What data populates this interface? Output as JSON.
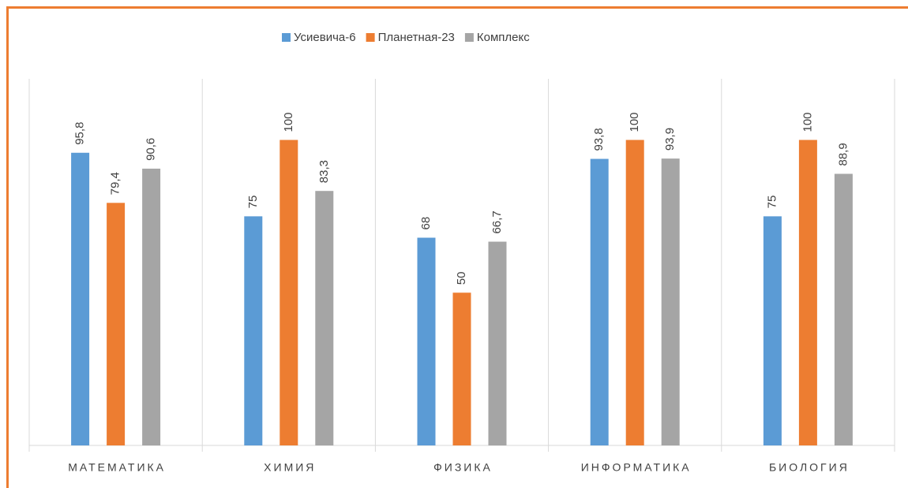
{
  "chart_data": {
    "type": "bar",
    "categories": [
      "МАТЕМАТИКА",
      "ХИМИЯ",
      "ФИЗИКА",
      "ИНФОРМАТИКА",
      "БИОЛОГИЯ"
    ],
    "series": [
      {
        "name": "Усиевича-6",
        "color": "#5b9bd5",
        "values": [
          95.8,
          75,
          68,
          93.8,
          75
        ],
        "value_labels": [
          "95,8",
          "75",
          "68",
          "93,8",
          "75"
        ]
      },
      {
        "name": "Планетная-23",
        "color": "#ed7d31",
        "values": [
          79.4,
          100,
          50,
          100,
          100
        ],
        "value_labels": [
          "79,4",
          "100",
          "50",
          "100",
          "100"
        ]
      },
      {
        "name": "Комплекс",
        "color": "#a5a5a5",
        "values": [
          90.6,
          83.3,
          66.7,
          93.9,
          88.9
        ],
        "value_labels": [
          "90,6",
          "83,3",
          "66,7",
          "93,9",
          "88,9"
        ]
      }
    ],
    "ylim": [
      0,
      120
    ],
    "legend": "top"
  }
}
